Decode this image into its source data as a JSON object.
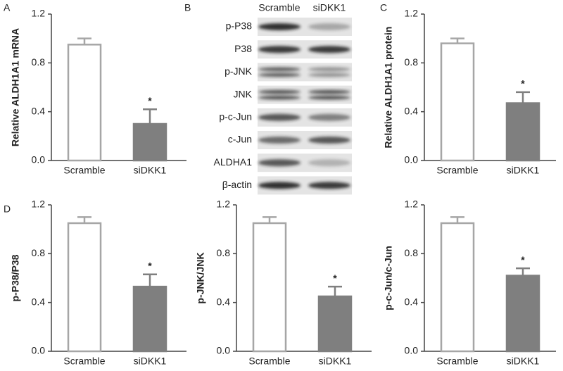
{
  "chart_data": [
    {
      "type": "bar",
      "panel": "A",
      "ylabel": "Relative ALDH1A1 mRNA",
      "categories": [
        "Scramble",
        "siDKK1"
      ],
      "values": [
        0.95,
        0.3
      ],
      "errors": [
        0.05,
        0.12
      ],
      "colors": [
        "#ffffff",
        "#7f7f7f"
      ],
      "edgecolor": "#a6a6a6",
      "annotation": "*",
      "ylim": [
        0,
        1.2
      ],
      "yticks": [
        {
          "value": 0,
          "label": "0.0"
        },
        {
          "value": 0.4,
          "label": "0.4"
        },
        {
          "value": 0.8,
          "label": "0.8"
        },
        {
          "value": 1.2,
          "label": "1.2"
        }
      ]
    },
    {
      "type": "bar",
      "panel": "C",
      "ylabel": "Relative ALDH1A1 protein",
      "categories": [
        "Scramble",
        "siDKK1"
      ],
      "values": [
        0.96,
        0.47
      ],
      "errors": [
        0.04,
        0.09
      ],
      "colors": [
        "#ffffff",
        "#7f7f7f"
      ],
      "edgecolor": "#a6a6a6",
      "annotation": "*",
      "ylim": [
        0,
        1.2
      ],
      "yticks": [
        {
          "value": 0,
          "label": "0.0"
        },
        {
          "value": 0.4,
          "label": "0.4"
        },
        {
          "value": 0.8,
          "label": "0.8"
        },
        {
          "value": 1.2,
          "label": "1.2"
        }
      ]
    },
    {
      "type": "bar",
      "panel": "D",
      "ylabel": "p-P38/P38",
      "categories": [
        "Scramble",
        "siDKK1"
      ],
      "values": [
        1.05,
        0.53
      ],
      "errors": [
        0.05,
        0.1
      ],
      "colors": [
        "#ffffff",
        "#7f7f7f"
      ],
      "edgecolor": "#a6a6a6",
      "annotation": "*",
      "ylim": [
        0,
        1.2
      ],
      "yticks": [
        {
          "value": 0,
          "label": "0.0"
        },
        {
          "value": 0.4,
          "label": "0.4"
        },
        {
          "value": 0.8,
          "label": "0.8"
        },
        {
          "value": 1.2,
          "label": "1.2"
        }
      ]
    },
    {
      "type": "bar",
      "ylabel": "p-JNK/JNK",
      "categories": [
        "Scramble",
        "siDKK1"
      ],
      "values": [
        1.05,
        0.45
      ],
      "errors": [
        0.05,
        0.08
      ],
      "colors": [
        "#ffffff",
        "#7f7f7f"
      ],
      "edgecolor": "#a6a6a6",
      "annotation": "*",
      "ylim": [
        0,
        1.2
      ],
      "yticks": [
        {
          "value": 0,
          "label": "0.0"
        },
        {
          "value": 0.4,
          "label": "0.4"
        },
        {
          "value": 0.8,
          "label": "0.8"
        },
        {
          "value": 1.2,
          "label": "1.2"
        }
      ]
    },
    {
      "type": "bar",
      "ylabel": "p-c-Jun/c-Jun",
      "categories": [
        "Scramble",
        "siDKK1"
      ],
      "values": [
        1.05,
        0.62
      ],
      "errors": [
        0.05,
        0.06
      ],
      "colors": [
        "#ffffff",
        "#7f7f7f"
      ],
      "edgecolor": "#a6a6a6",
      "annotation": "*",
      "ylim": [
        0,
        1.2
      ],
      "yticks": [
        {
          "value": 0,
          "label": "0.0"
        },
        {
          "value": 0.4,
          "label": "0.4"
        },
        {
          "value": 0.8,
          "label": "0.8"
        },
        {
          "value": 1.2,
          "label": "1.2"
        }
      ]
    }
  ],
  "blot": {
    "panel": "B",
    "columns": [
      "Scramble",
      "siDKK1"
    ],
    "rows": [
      "p-P38",
      "P38",
      "p-JNK",
      "JNK",
      "p-c-Jun",
      "c-Jun",
      "ALDHA1",
      "β-actin"
    ]
  }
}
